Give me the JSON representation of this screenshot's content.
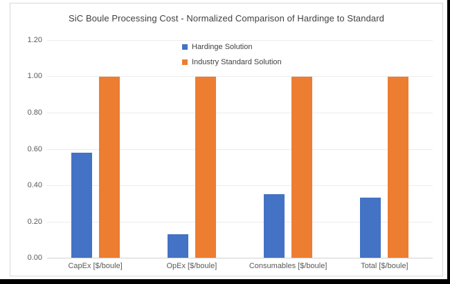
{
  "window": {
    "background": "#ffffff",
    "photo_edge_color": "#000000"
  },
  "chart_data": {
    "type": "bar",
    "title": "SiC Boule Processing Cost - Normalized Comparison of Hardinge to Standard",
    "categories": [
      "CapEx [$/boule]",
      "OpEx [$/boule]",
      "Consumables [$/boule]",
      "Total [$/boule]"
    ],
    "series": [
      {
        "name": "Hardinge Solution",
        "color": "#4472C4",
        "values": [
          0.58,
          0.13,
          0.35,
          0.33
        ]
      },
      {
        "name": "Industry Standard Solution",
        "color": "#ED7D31",
        "values": [
          1.0,
          1.0,
          1.0,
          1.0
        ]
      }
    ],
    "xlabel": "",
    "ylabel": "",
    "ylim": [
      0,
      1.2
    ],
    "yticks": [
      {
        "value": 1.2,
        "label": "1.20"
      },
      {
        "value": 1.0,
        "label": "1.00"
      },
      {
        "value": 0.8,
        "label": "0.80"
      },
      {
        "value": 0.6,
        "label": "0.60"
      },
      {
        "value": 0.4,
        "label": "0.40"
      },
      {
        "value": 0.2,
        "label": "0.20"
      },
      {
        "value": 0.0,
        "label": "0.00"
      }
    ],
    "grid": true,
    "legend_position": "top-center, stacked vertically",
    "colors": {
      "title_text": "#3f3f3f",
      "axis_text": "#595959",
      "gridline": "#ececec",
      "baseline": "#d0d0d0",
      "card_border": "#d8d8d8"
    }
  }
}
